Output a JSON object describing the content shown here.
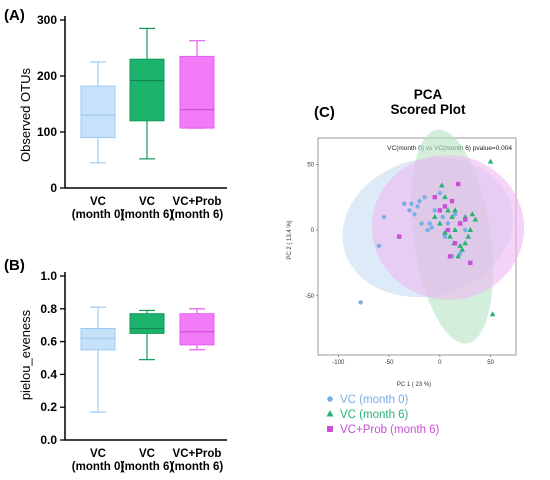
{
  "figure": {
    "panels": {
      "a": "(A)",
      "b": "(B)",
      "c": "(C)"
    }
  },
  "chart_data": [
    {
      "id": "A",
      "type": "box",
      "ylabel": "Observed OTUs",
      "ylim": [
        0,
        300
      ],
      "yticks": [
        0,
        100,
        200,
        300
      ],
      "categories": [
        "VC\n(month 0)",
        "VC\n(month 6)",
        "VC+Prob\n(month 6)"
      ],
      "boxes": [
        {
          "min": 45,
          "q1": 90,
          "median": 130,
          "q3": 182,
          "max": 225,
          "fill": "#c6e2fb",
          "stroke": "#9cc9f2",
          "median_color": "#9cc9f2"
        },
        {
          "min": 52,
          "q1": 120,
          "median": 192,
          "q3": 230,
          "max": 285,
          "fill": "#1cb36d",
          "stroke": "#0f9a58",
          "median_color": "#0f8a4e"
        },
        {
          "min": 107,
          "q1": 107,
          "median": 140,
          "q3": 235,
          "max": 263,
          "fill": "#f27cf7",
          "stroke": "#e75df0",
          "median_color": "#d84ae2"
        }
      ]
    },
    {
      "id": "B",
      "type": "box",
      "ylabel": "pielou_eveness",
      "ylim": [
        0.0,
        1.0
      ],
      "yticks": [
        "0.0",
        "0.2",
        "0.4",
        "0.6",
        "0.8",
        "1.0"
      ],
      "categories": [
        "VC\n(month 0)",
        "VC\n(month 6)",
        "VC+Prob\n(month 6)"
      ],
      "boxes": [
        {
          "min": 0.17,
          "q1": 0.55,
          "median": 0.62,
          "q3": 0.68,
          "max": 0.81,
          "fill": "#c6e2fb",
          "stroke": "#9cc9f2",
          "median_color": "#9cc9f2"
        },
        {
          "min": 0.49,
          "q1": 0.65,
          "median": 0.68,
          "q3": 0.77,
          "max": 0.79,
          "fill": "#1cb36d",
          "stroke": "#0f9a58",
          "median_color": "#0f8a4e"
        },
        {
          "min": 0.55,
          "q1": 0.58,
          "median": 0.66,
          "q3": 0.77,
          "max": 0.8,
          "fill": "#f27cf7",
          "stroke": "#e75df0",
          "median_color": "#d84ae2"
        }
      ]
    },
    {
      "id": "C",
      "type": "scatter",
      "title": "PCA\nScored Plot",
      "annotation": "VC(month 0) vs VC(month 6) pvalue=0.004",
      "xlabel": "PC 1 ( 23 %)",
      "ylabel": "PC 2 ( 13.4 %)",
      "xlim": [
        -120,
        75
      ],
      "ylim": [
        -95,
        70
      ],
      "xticks": [
        "-100",
        "-50",
        "0",
        "50"
      ],
      "yticks": [
        "-50",
        "0",
        "50"
      ],
      "series": [
        {
          "name": "VC (month 0)",
          "marker": "circle",
          "color": "#7aaee6",
          "ellipse": {
            "cx": -12,
            "cy": 2,
            "rx": 85,
            "ry": 52,
            "angle": -15,
            "fill": "#c6ddf4"
          },
          "points": [
            [
              -78,
              -55
            ],
            [
              -60,
              -12
            ],
            [
              -55,
              10
            ],
            [
              -35,
              20
            ],
            [
              -30,
              15
            ],
            [
              -28,
              20
            ],
            [
              -25,
              12
            ],
            [
              -22,
              18
            ],
            [
              -20,
              22
            ],
            [
              -18,
              5
            ],
            [
              -15,
              25
            ],
            [
              -12,
              0
            ],
            [
              -10,
              5
            ],
            [
              -8,
              2
            ],
            [
              -5,
              15
            ],
            [
              0,
              28
            ],
            [
              3,
              10
            ],
            [
              5,
              -5
            ],
            [
              8,
              5
            ],
            [
              12,
              -20
            ],
            [
              15,
              12
            ],
            [
              20,
              -18
            ],
            [
              25,
              0
            ]
          ]
        },
        {
          "name": "VC (month 6)",
          "marker": "triangle",
          "color": "#27b472",
          "ellipse": {
            "cx": 12,
            "cy": -5,
            "rx": 38,
            "ry": 82,
            "angle": -8,
            "fill": "#b6e5c5"
          },
          "points": [
            [
              50,
              52
            ],
            [
              52,
              -64
            ],
            [
              2,
              34
            ],
            [
              5,
              25
            ],
            [
              8,
              15
            ],
            [
              12,
              10
            ],
            [
              15,
              15
            ],
            [
              18,
              -20
            ],
            [
              20,
              5
            ],
            [
              22,
              -15
            ],
            [
              25,
              -10
            ],
            [
              28,
              -5
            ],
            [
              30,
              0
            ],
            [
              32,
              12
            ],
            [
              10,
              -5
            ],
            [
              15,
              0
            ],
            [
              5,
              -2
            ],
            [
              20,
              -12
            ],
            [
              25,
              10
            ],
            [
              -5,
              10
            ],
            [
              0,
              5
            ],
            [
              35,
              8
            ],
            [
              14,
              -10
            ]
          ]
        },
        {
          "name": "VC+Prob (month 6)",
          "marker": "square",
          "color": "#c94fd6",
          "ellipse": {
            "cx": 8,
            "cy": 2,
            "rx": 75,
            "ry": 55,
            "angle": 5,
            "fill": "#efb8f1"
          },
          "points": [
            [
              -40,
              -5
            ],
            [
              18,
              35
            ],
            [
              30,
              -25
            ],
            [
              10,
              -20
            ],
            [
              5,
              18
            ],
            [
              12,
              22
            ],
            [
              25,
              8
            ],
            [
              -5,
              25
            ],
            [
              0,
              15
            ],
            [
              15,
              -10
            ],
            [
              20,
              5
            ],
            [
              8,
              0
            ]
          ]
        }
      ],
      "legend_position": "bottom"
    }
  ]
}
